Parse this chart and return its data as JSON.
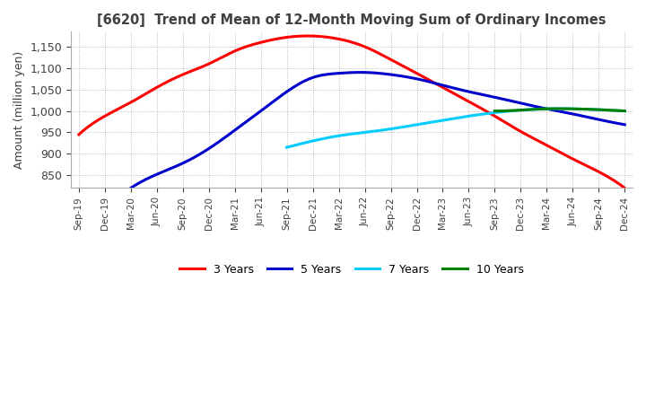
{
  "title": "[6620]  Trend of Mean of 12-Month Moving Sum of Ordinary Incomes",
  "ylabel": "Amount (million yen)",
  "ylim": [
    820,
    1185
  ],
  "yticks": [
    850,
    900,
    950,
    1000,
    1050,
    1100,
    1150
  ],
  "background_color": "#FFFFFF",
  "grid_color": "#AAAAAA",
  "title_color": "#404040",
  "x_labels": [
    "Sep-19",
    "Dec-19",
    "Mar-20",
    "Jun-20",
    "Sep-20",
    "Dec-20",
    "Mar-21",
    "Jun-21",
    "Sep-21",
    "Dec-21",
    "Mar-22",
    "Jun-22",
    "Sep-22",
    "Dec-22",
    "Mar-23",
    "Jun-23",
    "Sep-23",
    "Dec-23",
    "Mar-24",
    "Jun-24",
    "Sep-24",
    "Dec-24"
  ],
  "series": {
    "3 Years": {
      "color": "#FF0000",
      "data": [
        [
          0,
          945
        ],
        [
          1,
          988
        ],
        [
          2,
          1020
        ],
        [
          3,
          1055
        ],
        [
          4,
          1085
        ],
        [
          5,
          1110
        ],
        [
          6,
          1140
        ],
        [
          7,
          1160
        ],
        [
          8,
          1172
        ],
        [
          9,
          1175
        ],
        [
          10,
          1168
        ],
        [
          11,
          1150
        ],
        [
          12,
          1120
        ],
        [
          13,
          1088
        ],
        [
          14,
          1055
        ],
        [
          15,
          1022
        ],
        [
          16,
          988
        ],
        [
          17,
          952
        ],
        [
          18,
          920
        ],
        [
          19,
          888
        ],
        [
          20,
          858
        ],
        [
          21,
          820
        ]
      ]
    },
    "5 Years": {
      "color": "#0000CC",
      "data": [
        [
          2,
          820
        ],
        [
          3,
          852
        ],
        [
          4,
          878
        ],
        [
          5,
          912
        ],
        [
          6,
          955
        ],
        [
          7,
          1000
        ],
        [
          8,
          1045
        ],
        [
          9,
          1078
        ],
        [
          10,
          1088
        ],
        [
          11,
          1090
        ],
        [
          12,
          1085
        ],
        [
          13,
          1075
        ],
        [
          14,
          1060
        ],
        [
          15,
          1045
        ],
        [
          16,
          1032
        ],
        [
          17,
          1018
        ],
        [
          18,
          1005
        ],
        [
          19,
          993
        ],
        [
          20,
          980
        ],
        [
          21,
          968
        ]
      ]
    },
    "7 Years": {
      "color": "#00CCFF",
      "data": [
        [
          8,
          915
        ],
        [
          9,
          930
        ],
        [
          10,
          942
        ],
        [
          11,
          950
        ],
        [
          12,
          958
        ],
        [
          13,
          968
        ],
        [
          14,
          978
        ],
        [
          15,
          988
        ],
        [
          16,
          996
        ],
        [
          17,
          1002
        ],
        [
          18,
          1005
        ],
        [
          19,
          1005
        ],
        [
          20,
          1003
        ],
        [
          21,
          1000
        ]
      ]
    },
    "10 Years": {
      "color": "#008000",
      "data": [
        [
          16,
          1000
        ],
        [
          17,
          1002
        ],
        [
          18,
          1005
        ],
        [
          19,
          1005
        ],
        [
          20,
          1003
        ],
        [
          21,
          1000
        ]
      ]
    }
  }
}
